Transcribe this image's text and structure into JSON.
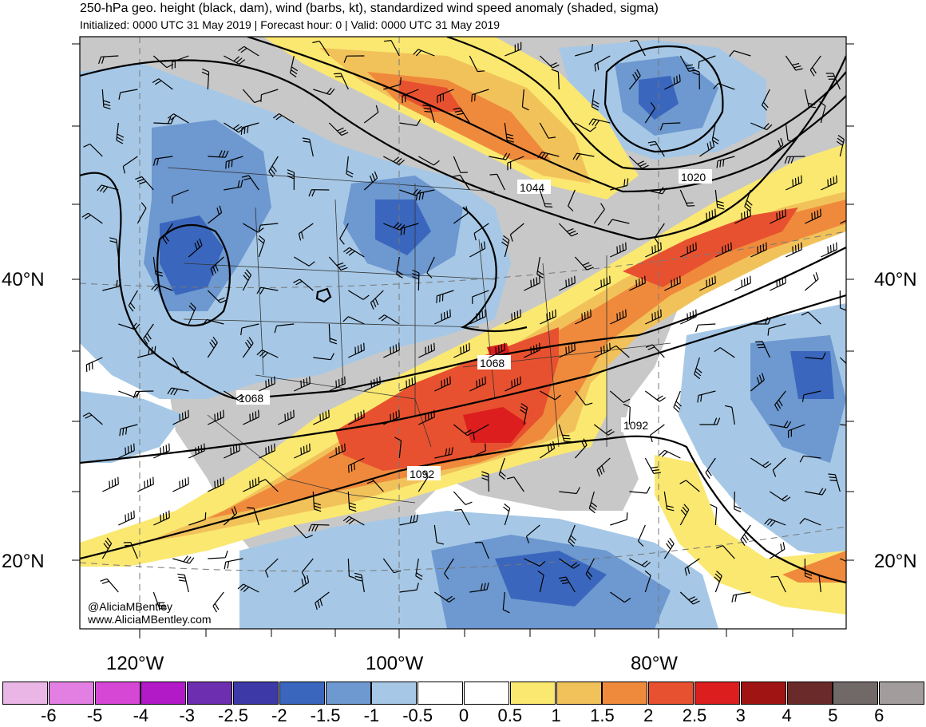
{
  "header": {
    "title": "250-hPa geo. height (black, dam), wind (barbs, kt), standardized wind speed anomaly (shaded, sigma)",
    "subtitle": "Initialized: 0000 UTC 31 May 2019 | Forecast hour: 0 | Valid: 0000 UTC 31 May 2019"
  },
  "map": {
    "lat_labels": {
      "n40_left": "40°N",
      "n40_right": "40°N",
      "n20_left": "20°N",
      "n20_right": "20°N"
    },
    "lon_labels": {
      "w120": "120°W",
      "w100": "100°W",
      "w80": "80°W"
    },
    "contour_labels": [
      "1020",
      "1044",
      "1068",
      "1068",
      "1092",
      "1092"
    ],
    "colors": {
      "land": "#c8c8c8",
      "border": "#333333",
      "neg_light": "#a6c8e6",
      "neg_mid": "#6d98d0",
      "neg_dark": "#3a67bd",
      "pos_light": "#fbe870",
      "pos_mid": "#f2c25a",
      "pos_orange": "#ef8a3c",
      "pos_red": "#e8512f",
      "pos_darkred": "#dd1e1e"
    }
  },
  "colorbar": {
    "colors": [
      "#e9b6e6",
      "#e37ee2",
      "#d647d6",
      "#b21ac8",
      "#6e2eb0",
      "#3d3aa8",
      "#3a67bd",
      "#6d98d0",
      "#a6c8e6",
      "#ffffff",
      "#ffffff",
      "#fbe870",
      "#f2c25a",
      "#ef8a3c",
      "#e8512f",
      "#dd1e1e",
      "#a11414",
      "#6b2a2a",
      "#716868",
      "#a39c9c"
    ],
    "labels": [
      "-6",
      "-5",
      "-4",
      "-3",
      "-2.5",
      "-2",
      "-1.5",
      "-1",
      "-0.5",
      "0",
      "0.5",
      "1",
      "1.5",
      "2",
      "2.5",
      "3",
      "4",
      "5",
      "6"
    ]
  },
  "credit": {
    "line1": "@AliciaMBentley",
    "line2": "www.AliciaMBentley.com"
  }
}
